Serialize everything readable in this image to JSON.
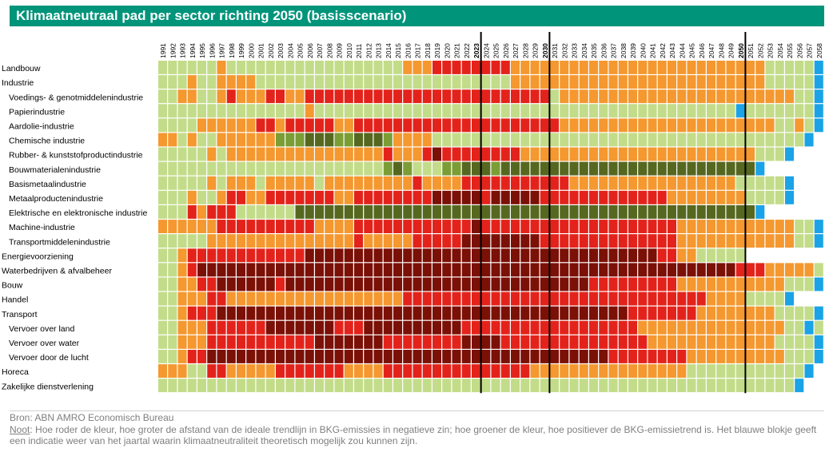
{
  "title": "Klimaatneutraal pad per sector richting 2050 (basisscenario)",
  "source": "Bron: ABN AMRO Economisch Bureau",
  "note_label": "Noot",
  "note_text": ": Hoe roder de kleur, hoe groter de afstand van de ideale trendlijn in BKG-emissies in negatieve zin; hoe groener de kleur, hoe positiever de BKG-emissietrend is. Het blauwe blokje geeft een indicatie weer van het jaartal waarin klimaatneutraliteit theoretisch mogelijk zou kunnen zijn.",
  "chart_data": {
    "type": "heatmap",
    "years": [
      "1991",
      "1992",
      "1993",
      "1994",
      "1995",
      "1996",
      "1997",
      "1998",
      "1999",
      "2000",
      "2001",
      "2002",
      "2003",
      "2004",
      "2005",
      "2006",
      "2007",
      "2008",
      "2009",
      "2010",
      "2011",
      "2012",
      "2013",
      "2014",
      "2015",
      "2016",
      "2017",
      "2018",
      "2019",
      "2020",
      "2021",
      "2022",
      "2023",
      "2024",
      "2025",
      "2026",
      "2027",
      "2028",
      "2029",
      "2030",
      "2031",
      "2032",
      "2033",
      "2034",
      "2035",
      "2036",
      "2037",
      "2038",
      "2039",
      "2040",
      "2041",
      "2042",
      "2043",
      "2044",
      "2045",
      "2046",
      "2047",
      "2048",
      "2049",
      "2050",
      "2051",
      "2052",
      "2053",
      "2054",
      "2055",
      "2056",
      "2057",
      "2058"
    ],
    "bold_years": [
      "2023",
      "2030",
      "2050"
    ],
    "legend": {
      "1": {
        "color": "#7b1006",
        "meaning": "zeer negatief"
      },
      "2": {
        "color": "#e3231b",
        "meaning": "negatief"
      },
      "3": {
        "color": "#f4982f",
        "meaning": "licht negatief"
      },
      "4": {
        "color": "#c3dc8a",
        "meaning": "licht positief"
      },
      "5": {
        "color": "#7b9d35",
        "meaning": "positief"
      },
      "6": {
        "color": "#566820",
        "meaning": "zeer positief"
      },
      "9": {
        "color": "#1aa3e6",
        "meaning": "klimaatneutraliteit theoretisch mogelijk"
      },
      "0": {
        "color": "none",
        "meaning": "leeg"
      }
    },
    "rows": [
      {
        "label": "Landbouw",
        "indent": false,
        "codes": "44444434444444444444444443332222222233333333333333333333333333444449"
      },
      {
        "label": "Industrie",
        "indent": false,
        "codes": "44434433334444444444444444444444444433333333333333333333333333444449"
      },
      {
        "label": "Voedings- & genotmiddelenindustrie",
        "indent": true,
        "codes": "44334432333223322222222222222222222222224333333333333333333333333449"
      },
      {
        "label": "Papierindustrie",
        "indent": true,
        "codes": "44444444444444434444444444444444444444444444444444444444444944444449"
      },
      {
        "label": "Aardolie-industrie",
        "indent": true,
        "codes": "44443333332232222233222222222222222222222333333333333333333333344349"
      },
      {
        "label": "Chemische industrie",
        "indent": true,
        "codes": "33434433333355566655666533334444444444444444444444444444444444444490"
      },
      {
        "label": "Rubber- & kunststofproductindustrie",
        "indent": true,
        "codes": "44444343333333333333333233321222222223333333333333333333333334449000"
      },
      {
        "label": "Bouwmaterialenindustrie",
        "indent": true,
        "codes": "44444444444444444444444565444556665666666666666666666666666669000000"
      },
      {
        "label": "Basismetaalindustrie",
        "indent": true,
        "codes": "44444343334333334333333333233332222222222233333333333333333444449000"
      },
      {
        "label": "Metaalproductenindustrie",
        "indent": true,
        "codes": "44434432233222222233222222221111121111122222222222223333333344449000"
      },
      {
        "label": "Elektrische en elektronische industrie",
        "indent": true,
        "codes": "44423222444444666666666666666666666666666666666666666666666669000000"
      },
      {
        "label": "Machine-industrie",
        "indent": true,
        "codes": "33333322222222223333222222222222122222222222222222222333333333333449"
      },
      {
        "label": "Transportmiddelenindustrie",
        "indent": true,
        "codes": "44444333333333333333233333222221111111122222222222222333333333333449"
      },
      {
        "label": "Energievoorziening",
        "indent": false,
        "codes": "44322222222222211111111111111111111111111111111111122334444400000000"
      },
      {
        "label": "Waterbedrijven & afvalbeheer",
        "indent": false,
        "codes": "44321111111111111111111111111111111111111111111111111111111222333334"
      },
      {
        "label": "Bouw",
        "indent": false,
        "codes": "44332211111121111111111111111111111111111111222222222333333333334449"
      },
      {
        "label": "Handel",
        "indent": false,
        "codes": "44333223333333333333333332222222222222222222222222222222333344449000"
      },
      {
        "label": "Transport",
        "indent": false,
        "codes": "44322211111111111111111111111111111111111111111122222223333333344449"
      },
      {
        "label": "Vervoer over land",
        "indent": true,
        "codes": "44333222222111111122211111111112222222222222222223333333333333334494"
      },
      {
        "label": "Vervoer over water",
        "indent": true,
        "codes": "44333222222222221111111222222221111222222222222222333333333333344449"
      },
      {
        "label": "Vervoer door de lucht",
        "indent": true,
        "codes": "44322111111111111111111111111111111111111111112222222233333333334449"
      },
      {
        "label": "Horeca",
        "indent": false,
        "codes": "33344223333322222223333222222222222222333333333333333344444444444490"
      },
      {
        "label": "Zakelijke dienstverlening",
        "indent": false,
        "codes": "44444444444444444444444444444444444444444444444444444444444444444900"
      }
    ]
  }
}
